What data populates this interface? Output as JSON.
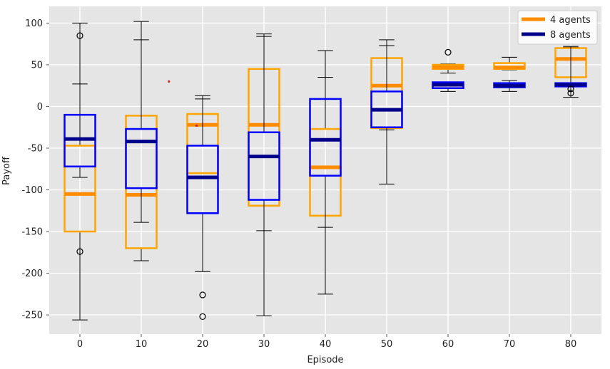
{
  "chart_data": {
    "type": "box",
    "title": "",
    "xlabel": "Episode",
    "ylabel": "Payoff",
    "xlim": [
      -5,
      85
    ],
    "ylim": [
      -273,
      120
    ],
    "xticks": [
      0,
      10,
      20,
      30,
      40,
      50,
      60,
      70,
      80
    ],
    "yticks": [
      -250,
      -200,
      -150,
      -100,
      -50,
      0,
      50,
      100
    ],
    "grid": true,
    "legend_position": "top-right",
    "box_half_width": 2.5,
    "series": [
      {
        "name": "4 agents",
        "color": "#FFA500",
        "median_color": "#FF8C00",
        "boxes": [
          {
            "x": 0,
            "whisker_low": -256,
            "q1": -150,
            "median": -105,
            "q3": -47,
            "whisker_high": 100,
            "outliers": []
          },
          {
            "x": 10,
            "whisker_low": -185,
            "q1": -170,
            "median": -106,
            "q3": -11,
            "whisker_high": 102,
            "outliers": []
          },
          {
            "x": 20,
            "whisker_low": -80,
            "q1": -80,
            "median": -22,
            "q3": -9,
            "whisker_high": 9,
            "outliers": [
              -226,
              -252
            ]
          },
          {
            "x": 30,
            "whisker_low": -251,
            "q1": -119,
            "median": -22,
            "q3": 45,
            "whisker_high": 87,
            "outliers": []
          },
          {
            "x": 40,
            "whisker_low": -225,
            "q1": -131,
            "median": -73,
            "q3": -27,
            "whisker_high": 35,
            "outliers": []
          },
          {
            "x": 50,
            "whisker_low": -93,
            "q1": -26,
            "median": 25,
            "q3": 58,
            "whisker_high": 80,
            "outliers": []
          },
          {
            "x": 60,
            "whisker_low": 40,
            "q1": 45,
            "median": 47,
            "q3": 50,
            "whisker_high": 51,
            "outliers": [
              65
            ]
          },
          {
            "x": 70,
            "whisker_low": 44,
            "q1": 45,
            "median": 47,
            "q3": 52,
            "whisker_high": 59,
            "outliers": []
          },
          {
            "x": 80,
            "whisker_low": 35,
            "q1": 35,
            "median": 57,
            "q3": 70,
            "whisker_high": 71,
            "outliers": []
          }
        ]
      },
      {
        "name": "8 agents",
        "color": "#0000FF",
        "median_color": "#00008B",
        "boxes": [
          {
            "x": 0,
            "whisker_low": -85,
            "q1": -72,
            "median": -39,
            "q3": -10,
            "whisker_high": 27,
            "outliers": [
              85,
              -174
            ]
          },
          {
            "x": 10,
            "whisker_low": -139,
            "q1": -98,
            "median": -42,
            "q3": -27,
            "whisker_high": 80,
            "outliers": []
          },
          {
            "x": 20,
            "whisker_low": -198,
            "q1": -128,
            "median": -85,
            "q3": -47,
            "whisker_high": 13,
            "outliers": []
          },
          {
            "x": 30,
            "whisker_low": -149,
            "q1": -112,
            "median": -60,
            "q3": -31,
            "whisker_high": 84,
            "outliers": []
          },
          {
            "x": 40,
            "whisker_low": -145,
            "q1": -83,
            "median": -40,
            "q3": 9,
            "whisker_high": 67,
            "outliers": []
          },
          {
            "x": 50,
            "whisker_low": -28,
            "q1": -25,
            "median": -4,
            "q3": 18,
            "whisker_high": 73,
            "outliers": []
          },
          {
            "x": 60,
            "whisker_low": 18,
            "q1": 22,
            "median": 26,
            "q3": 29,
            "whisker_high": 29,
            "outliers": []
          },
          {
            "x": 70,
            "whisker_low": 18,
            "q1": 23,
            "median": 25,
            "q3": 28,
            "whisker_high": 31,
            "outliers": []
          },
          {
            "x": 80,
            "whisker_low": 11,
            "q1": 24,
            "median": 26,
            "q3": 28,
            "whisker_high": 72,
            "outliers": [
              16,
              21
            ]
          }
        ]
      }
    ],
    "stray_points": [
      {
        "x": 14.5,
        "y": 30,
        "color": "#CC2222"
      },
      {
        "x": 19,
        "y": -23,
        "color": "#CC2222"
      }
    ],
    "legend": [
      "4 agents",
      "8 agents"
    ]
  }
}
